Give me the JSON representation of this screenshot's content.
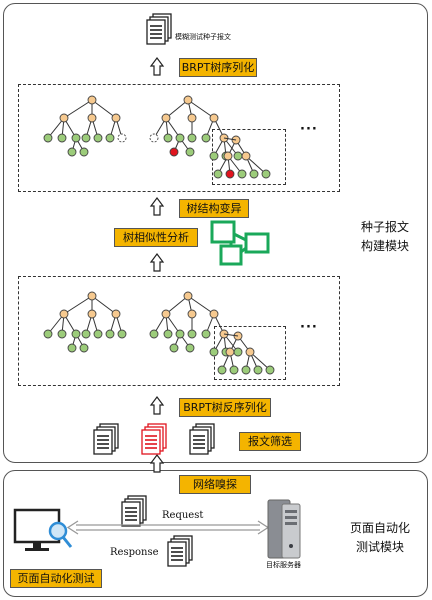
{
  "top_panel": {
    "output_label": "模糊测试种子报文",
    "brpt_serialize_label": "BRPT树序列化",
    "mutation_label": "树结构变异",
    "similarity_label": "树相似性分析",
    "deserialize_label": "BRPT树反序列化",
    "filter_label": "报文筛选",
    "side_label_line1": "种子报文",
    "side_label_line2": "构建模块",
    "ellipsis": "···"
  },
  "bottom_panel": {
    "sniff_label": "网络嗅探",
    "request_label": "Request",
    "response_label": "Response",
    "server_label": "目标服务器",
    "tester_label": "页面自动化测试",
    "side_label_line1": "页面自动化",
    "side_label_line2": "测试模块"
  },
  "colors": {
    "accent_yellow": "#f4b400",
    "node_orange": "#f6c98f",
    "node_green": "#9ccc7a",
    "node_red": "#e0141e",
    "doc_red": "#e0141e",
    "puzzle_green": "#1aa85a"
  }
}
